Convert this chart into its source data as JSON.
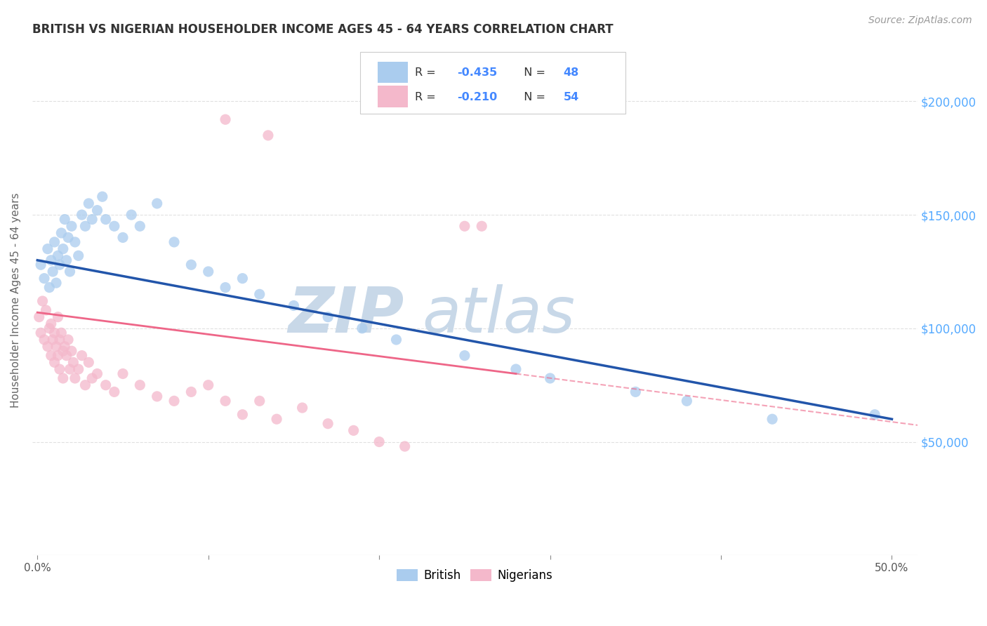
{
  "title": "BRITISH VS NIGERIAN HOUSEHOLDER INCOME AGES 45 - 64 YEARS CORRELATION CHART",
  "source": "Source: ZipAtlas.com",
  "ylabel": "Householder Income Ages 45 - 64 years",
  "ylabel_ticks": [
    "$50,000",
    "$100,000",
    "$150,000",
    "$200,000"
  ],
  "ylabel_vals": [
    50000,
    100000,
    150000,
    200000
  ],
  "ylim": [
    0,
    225000
  ],
  "xlim": [
    -0.003,
    0.515
  ],
  "british_color": "#aaccee",
  "nigerian_color": "#f4b8cb",
  "british_line_color": "#2255aa",
  "nigerian_line_color": "#ee6688",
  "watermark_zip_color": "#c8d8e8",
  "watermark_atlas_color": "#c8d8e8",
  "background_color": "#ffffff",
  "grid_color": "#dddddd",
  "right_axis_color": "#55aaff",
  "title_color": "#333333",
  "source_color": "#999999",
  "legend_text_color": "#333333",
  "legend_r_color": "#4488ff",
  "legend_border_color": "#cccccc",
  "british_x": [
    0.002,
    0.004,
    0.006,
    0.007,
    0.008,
    0.009,
    0.01,
    0.011,
    0.012,
    0.013,
    0.014,
    0.015,
    0.016,
    0.017,
    0.018,
    0.019,
    0.02,
    0.022,
    0.024,
    0.026,
    0.028,
    0.03,
    0.032,
    0.035,
    0.038,
    0.04,
    0.045,
    0.05,
    0.055,
    0.06,
    0.07,
    0.08,
    0.09,
    0.1,
    0.11,
    0.12,
    0.13,
    0.15,
    0.17,
    0.19,
    0.21,
    0.25,
    0.28,
    0.3,
    0.35,
    0.38,
    0.43,
    0.49
  ],
  "british_y": [
    128000,
    122000,
    135000,
    118000,
    130000,
    125000,
    138000,
    120000,
    132000,
    128000,
    142000,
    135000,
    148000,
    130000,
    140000,
    125000,
    145000,
    138000,
    132000,
    150000,
    145000,
    155000,
    148000,
    152000,
    158000,
    148000,
    145000,
    140000,
    150000,
    145000,
    155000,
    138000,
    128000,
    125000,
    118000,
    122000,
    115000,
    110000,
    105000,
    100000,
    95000,
    88000,
    82000,
    78000,
    72000,
    68000,
    60000,
    62000
  ],
  "nigerian_x": [
    0.001,
    0.002,
    0.003,
    0.004,
    0.005,
    0.006,
    0.007,
    0.008,
    0.008,
    0.009,
    0.01,
    0.01,
    0.011,
    0.012,
    0.012,
    0.013,
    0.013,
    0.014,
    0.015,
    0.015,
    0.016,
    0.017,
    0.018,
    0.019,
    0.02,
    0.021,
    0.022,
    0.024,
    0.026,
    0.028,
    0.03,
    0.032,
    0.035,
    0.04,
    0.045,
    0.05,
    0.06,
    0.07,
    0.08,
    0.09,
    0.1,
    0.11,
    0.12,
    0.13,
    0.14,
    0.155,
    0.17,
    0.185,
    0.2,
    0.215,
    0.11,
    0.135,
    0.25,
    0.26
  ],
  "nigerian_y": [
    105000,
    98000,
    112000,
    95000,
    108000,
    92000,
    100000,
    102000,
    88000,
    95000,
    98000,
    85000,
    92000,
    105000,
    88000,
    95000,
    82000,
    98000,
    90000,
    78000,
    92000,
    88000,
    95000,
    82000,
    90000,
    85000,
    78000,
    82000,
    88000,
    75000,
    85000,
    78000,
    80000,
    75000,
    72000,
    80000,
    75000,
    70000,
    68000,
    72000,
    75000,
    68000,
    62000,
    68000,
    60000,
    65000,
    58000,
    55000,
    50000,
    48000,
    192000,
    185000,
    145000,
    145000
  ],
  "nigerian_solid_xlim": [
    0.001,
    0.155
  ],
  "marker_size": 120,
  "xtick_positions": [
    0.0,
    0.1,
    0.2,
    0.3,
    0.4,
    0.5
  ],
  "xtick_labels_show": [
    "0.0%",
    "",
    "",
    "",
    "",
    "50.0%"
  ]
}
